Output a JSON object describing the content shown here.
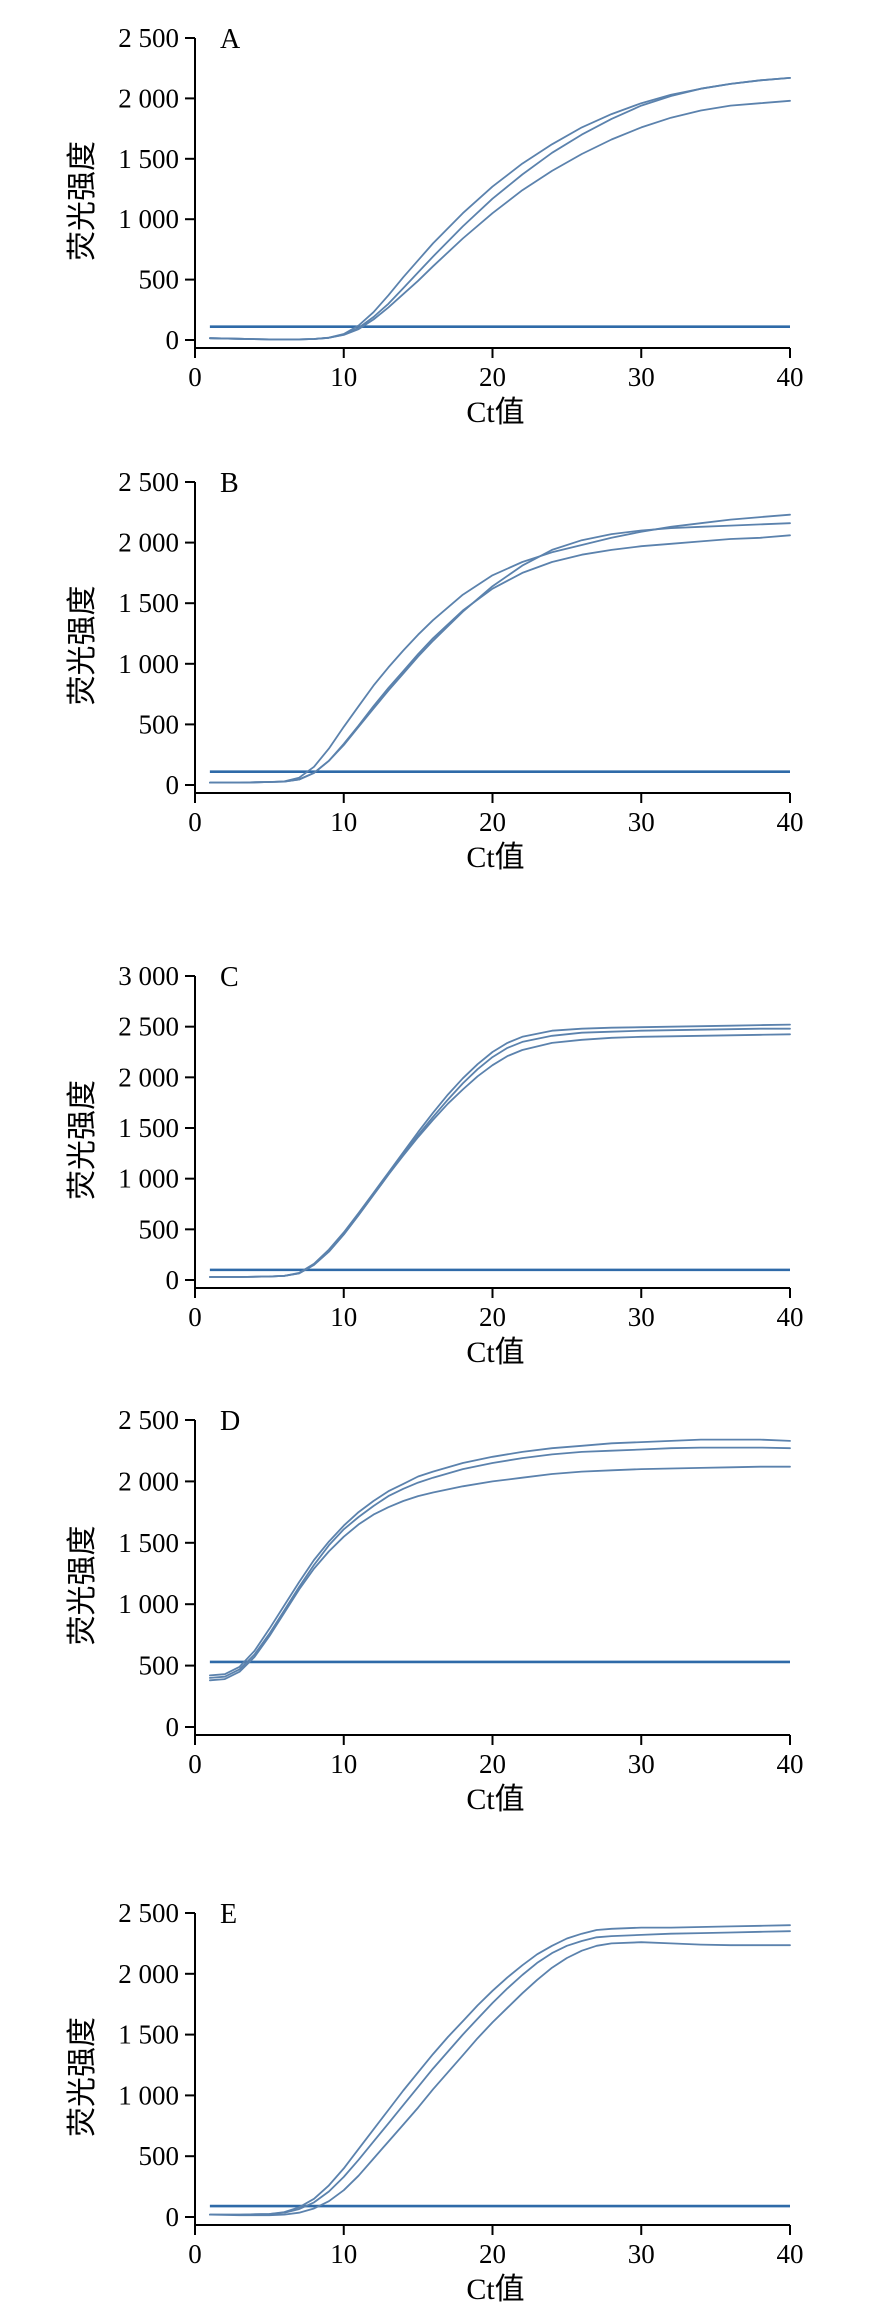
{
  "colors": {
    "curve": "#5b82ad",
    "threshold": "#2f6aa8",
    "axis": "#000000"
  },
  "chart_data": [
    {
      "type": "line",
      "panel_label": "A",
      "xlabel": "Ct值",
      "ylabel": "荧光强度",
      "xlim": [
        0,
        40
      ],
      "ylim": [
        0,
        2500
      ],
      "x_ticks": [
        0,
        10,
        20,
        30,
        40
      ],
      "x_tick_labels": [
        "0",
        "10",
        "20",
        "30",
        "40"
      ],
      "y_ticks": [
        0,
        500,
        1000,
        1500,
        2000,
        2500
      ],
      "y_tick_labels": [
        "0",
        "500",
        "1 000",
        "1 500",
        "2 000",
        "2 500"
      ],
      "threshold": 110,
      "x": [
        1,
        3,
        5,
        7,
        8,
        9,
        10,
        11,
        12,
        13,
        14,
        15,
        16,
        18,
        20,
        22,
        24,
        26,
        28,
        30,
        32,
        34,
        36,
        38,
        40
      ],
      "series": [
        {
          "values": [
            15,
            10,
            5,
            5,
            8,
            20,
            50,
            120,
            230,
            370,
            520,
            660,
            800,
            1050,
            1270,
            1460,
            1620,
            1760,
            1870,
            1960,
            2030,
            2080,
            2120,
            2150,
            2170
          ]
        },
        {
          "values": [
            15,
            10,
            5,
            5,
            8,
            18,
            45,
            100,
            190,
            300,
            430,
            560,
            690,
            940,
            1170,
            1370,
            1550,
            1700,
            1830,
            1940,
            2020,
            2080,
            2120,
            2150,
            2170
          ]
        },
        {
          "values": [
            15,
            10,
            5,
            5,
            8,
            18,
            42,
            90,
            170,
            270,
            380,
            490,
            610,
            840,
            1050,
            1240,
            1400,
            1540,
            1660,
            1760,
            1840,
            1900,
            1940,
            1960,
            1980
          ]
        }
      ]
    },
    {
      "type": "line",
      "panel_label": "B",
      "xlabel": "Ct值",
      "ylabel": "荧光强度",
      "xlim": [
        0,
        40
      ],
      "ylim": [
        0,
        2500
      ],
      "x_ticks": [
        0,
        10,
        20,
        30,
        40
      ],
      "x_tick_labels": [
        "0",
        "10",
        "20",
        "30",
        "40"
      ],
      "y_ticks": [
        0,
        500,
        1000,
        1500,
        2000,
        2500
      ],
      "y_tick_labels": [
        "0",
        "500",
        "1 000",
        "1 500",
        "2 000",
        "2 500"
      ],
      "threshold": 110,
      "x": [
        1,
        3,
        5,
        6,
        7,
        8,
        9,
        10,
        11,
        12,
        13,
        14,
        15,
        16,
        18,
        20,
        22,
        24,
        26,
        28,
        30,
        32,
        34,
        36,
        38,
        40
      ],
      "series": [
        {
          "values": [
            20,
            20,
            25,
            30,
            60,
            150,
            300,
            480,
            650,
            820,
            970,
            1110,
            1240,
            1360,
            1570,
            1730,
            1840,
            1920,
            1980,
            2040,
            2090,
            2130,
            2160,
            2190,
            2210,
            2230
          ]
        },
        {
          "values": [
            20,
            20,
            25,
            28,
            45,
            100,
            200,
            330,
            480,
            630,
            780,
            920,
            1060,
            1190,
            1430,
            1640,
            1810,
            1940,
            2020,
            2070,
            2100,
            2120,
            2130,
            2140,
            2150,
            2160
          ]
        },
        {
          "values": [
            20,
            20,
            25,
            28,
            45,
            100,
            200,
            340,
            490,
            650,
            800,
            940,
            1080,
            1210,
            1440,
            1620,
            1750,
            1840,
            1900,
            1940,
            1970,
            1990,
            2010,
            2030,
            2040,
            2060
          ]
        }
      ]
    },
    {
      "type": "line",
      "panel_label": "C",
      "xlabel": "Ct值",
      "ylabel": "荧光强度",
      "xlim": [
        0,
        40
      ],
      "ylim": [
        0,
        3000
      ],
      "x_ticks": [
        0,
        10,
        20,
        30,
        40
      ],
      "x_tick_labels": [
        "0",
        "10",
        "20",
        "30",
        "40"
      ],
      "y_ticks": [
        0,
        500,
        1000,
        1500,
        2000,
        2500,
        3000
      ],
      "y_tick_labels": [
        "0",
        "500",
        "1 000",
        "1 500",
        "2 000",
        "2 500",
        "3 000"
      ],
      "threshold": 100,
      "x": [
        1,
        3,
        5,
        6,
        7,
        8,
        9,
        10,
        11,
        12,
        13,
        14,
        15,
        16,
        17,
        18,
        19,
        20,
        21,
        22,
        24,
        26,
        28,
        30,
        32,
        34,
        36,
        38,
        40
      ],
      "series": [
        {
          "values": [
            30,
            30,
            35,
            40,
            70,
            160,
            300,
            470,
            660,
            860,
            1060,
            1260,
            1460,
            1650,
            1830,
            1990,
            2130,
            2250,
            2340,
            2400,
            2460,
            2480,
            2490,
            2495,
            2500,
            2505,
            2510,
            2515,
            2520
          ]
        },
        {
          "values": [
            30,
            30,
            35,
            40,
            65,
            150,
            280,
            450,
            640,
            840,
            1040,
            1240,
            1430,
            1610,
            1780,
            1940,
            2080,
            2200,
            2290,
            2350,
            2410,
            2440,
            2450,
            2460,
            2465,
            2470,
            2475,
            2480,
            2480
          ]
        },
        {
          "values": [
            30,
            30,
            35,
            40,
            65,
            150,
            280,
            450,
            640,
            840,
            1040,
            1230,
            1410,
            1580,
            1740,
            1880,
            2010,
            2120,
            2210,
            2270,
            2340,
            2370,
            2390,
            2400,
            2405,
            2410,
            2415,
            2420,
            2425
          ]
        }
      ]
    },
    {
      "type": "line",
      "panel_label": "D",
      "xlabel": "Ct值",
      "ylabel": "荧光强度",
      "xlim": [
        0,
        40
      ],
      "ylim": [
        0,
        2500
      ],
      "x_ticks": [
        0,
        10,
        20,
        30,
        40
      ],
      "x_tick_labels": [
        "0",
        "10",
        "20",
        "30",
        "40"
      ],
      "y_ticks": [
        0,
        500,
        1000,
        1500,
        2000,
        2500
      ],
      "y_tick_labels": [
        "0",
        "500",
        "1 000",
        "1 500",
        "2 000",
        "2 500"
      ],
      "threshold": 530,
      "x": [
        1,
        2,
        3,
        4,
        5,
        6,
        7,
        8,
        9,
        10,
        11,
        12,
        13,
        14,
        15,
        16,
        18,
        20,
        22,
        24,
        26,
        28,
        30,
        32,
        34,
        36,
        38,
        40
      ],
      "series": [
        {
          "values": [
            420,
            430,
            490,
            620,
            800,
            990,
            1180,
            1360,
            1510,
            1640,
            1750,
            1840,
            1920,
            1980,
            2040,
            2080,
            2150,
            2200,
            2240,
            2270,
            2290,
            2310,
            2320,
            2330,
            2340,
            2340,
            2340,
            2330
          ]
        },
        {
          "values": [
            400,
            410,
            470,
            590,
            760,
            950,
            1140,
            1320,
            1480,
            1610,
            1710,
            1800,
            1880,
            1940,
            1990,
            2030,
            2100,
            2150,
            2190,
            2220,
            2240,
            2250,
            2260,
            2270,
            2275,
            2275,
            2275,
            2270
          ]
        },
        {
          "values": [
            380,
            390,
            450,
            570,
            740,
            930,
            1120,
            1290,
            1430,
            1550,
            1650,
            1730,
            1790,
            1840,
            1880,
            1910,
            1960,
            2000,
            2030,
            2060,
            2080,
            2090,
            2100,
            2105,
            2110,
            2115,
            2120,
            2120
          ]
        }
      ]
    },
    {
      "type": "line",
      "panel_label": "E",
      "xlabel": "Ct值",
      "ylabel": "荧光强度",
      "xlim": [
        0,
        40
      ],
      "ylim": [
        0,
        2500
      ],
      "x_ticks": [
        0,
        10,
        20,
        30,
        40
      ],
      "x_tick_labels": [
        "0",
        "10",
        "20",
        "30",
        "40"
      ],
      "y_ticks": [
        0,
        500,
        1000,
        1500,
        2000,
        2500
      ],
      "y_tick_labels": [
        "0",
        "500",
        "1 000",
        "1 500",
        "2 000",
        "2 500"
      ],
      "threshold": 90,
      "x": [
        1,
        3,
        5,
        6,
        7,
        8,
        9,
        10,
        11,
        12,
        13,
        14,
        15,
        16,
        17,
        18,
        19,
        20,
        21,
        22,
        23,
        24,
        25,
        26,
        27,
        28,
        30,
        32,
        34,
        36,
        38,
        40
      ],
      "series": [
        {
          "values": [
            20,
            20,
            25,
            40,
            80,
            150,
            260,
            400,
            560,
            720,
            880,
            1040,
            1190,
            1340,
            1480,
            1610,
            1740,
            1860,
            1970,
            2070,
            2160,
            2230,
            2290,
            2330,
            2360,
            2370,
            2380,
            2380,
            2385,
            2390,
            2395,
            2400
          ]
        },
        {
          "values": [
            20,
            20,
            25,
            35,
            65,
            120,
            210,
            330,
            470,
            620,
            770,
            920,
            1070,
            1220,
            1360,
            1500,
            1630,
            1760,
            1880,
            1990,
            2090,
            2170,
            2230,
            2270,
            2300,
            2310,
            2320,
            2330,
            2335,
            2340,
            2345,
            2350
          ]
        },
        {
          "values": [
            20,
            15,
            15,
            20,
            35,
            70,
            130,
            220,
            340,
            480,
            620,
            760,
            900,
            1050,
            1190,
            1330,
            1470,
            1600,
            1720,
            1840,
            1950,
            2050,
            2130,
            2190,
            2230,
            2250,
            2260,
            2250,
            2240,
            2235,
            2235,
            2235
          ]
        }
      ]
    }
  ]
}
